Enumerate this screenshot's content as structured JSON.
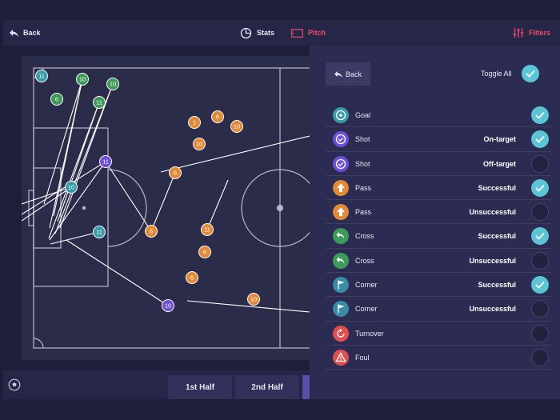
{
  "toolbar": {
    "back_label": "Back",
    "stats_label": "Stats",
    "pitch_label": "Pitch",
    "filters_label": "Filters",
    "accent_color": "#ec4a6a"
  },
  "pitch": {
    "markers": [
      {
        "label": "11",
        "team": "teal"
      },
      {
        "label": "10",
        "team": "green"
      },
      {
        "label": "10",
        "team": "green"
      },
      {
        "label": "6",
        "team": "green"
      },
      {
        "label": "11",
        "team": "green"
      },
      {
        "label": "11",
        "team": "purple"
      },
      {
        "label": "10",
        "team": "teal"
      },
      {
        "label": "11",
        "team": "teal"
      },
      {
        "label": "1",
        "team": "orange"
      },
      {
        "label": "6",
        "team": "orange"
      },
      {
        "label": "10",
        "team": "orange"
      },
      {
        "label": "10",
        "team": "orange"
      },
      {
        "label": "6",
        "team": "orange"
      },
      {
        "label": "6",
        "team": "orange"
      },
      {
        "label": "11",
        "team": "orange"
      },
      {
        "label": "6",
        "team": "orange"
      },
      {
        "label": "6",
        "team": "orange"
      },
      {
        "label": "10",
        "team": "purple"
      },
      {
        "label": "10",
        "team": "orange"
      }
    ],
    "team_colors": {
      "teal": "#3a9aa8",
      "green": "#3e9a5a",
      "purple": "#6c4ed8",
      "orange": "#e08a3a"
    }
  },
  "bottombar": {
    "half1_label": "1st Half",
    "half2_label": "2nd Half"
  },
  "filters": {
    "back_label": "Back",
    "toggle_all_label": "Toggle All",
    "toggle_all_checked": true,
    "rows": [
      {
        "label": "Goal",
        "sub": "",
        "icon": "goal-icon",
        "color": "#3a9aa8",
        "checked": true
      },
      {
        "label": "Shot",
        "sub": "On-target",
        "icon": "shot-icon",
        "color": "#6c4ed8",
        "checked": true
      },
      {
        "label": "Shot",
        "sub": "Off-target",
        "icon": "shot-icon",
        "color": "#6c4ed8",
        "checked": false
      },
      {
        "label": "Pass",
        "sub": "Successful",
        "icon": "pass-icon",
        "color": "#e08a3a",
        "checked": true
      },
      {
        "label": "Pass",
        "sub": "Unsuccessful",
        "icon": "pass-icon",
        "color": "#e08a3a",
        "checked": false
      },
      {
        "label": "Cross",
        "sub": "Successful",
        "icon": "cross-icon",
        "color": "#3e9a5a",
        "checked": true
      },
      {
        "label": "Cross",
        "sub": "Unsuccessful",
        "icon": "cross-icon",
        "color": "#3e9a5a",
        "checked": false
      },
      {
        "label": "Corner",
        "sub": "Successful",
        "icon": "corner-flag-icon",
        "color": "#3a8aa8",
        "checked": true
      },
      {
        "label": "Corner",
        "sub": "Unsuccessful",
        "icon": "corner-flag-icon",
        "color": "#3a8aa8",
        "checked": false
      },
      {
        "label": "Turnover",
        "sub": "",
        "icon": "turnover-icon",
        "color": "#e05050",
        "checked": false
      },
      {
        "label": "Foul",
        "sub": "",
        "icon": "foul-icon",
        "color": "#e05050",
        "checked": false
      }
    ]
  }
}
